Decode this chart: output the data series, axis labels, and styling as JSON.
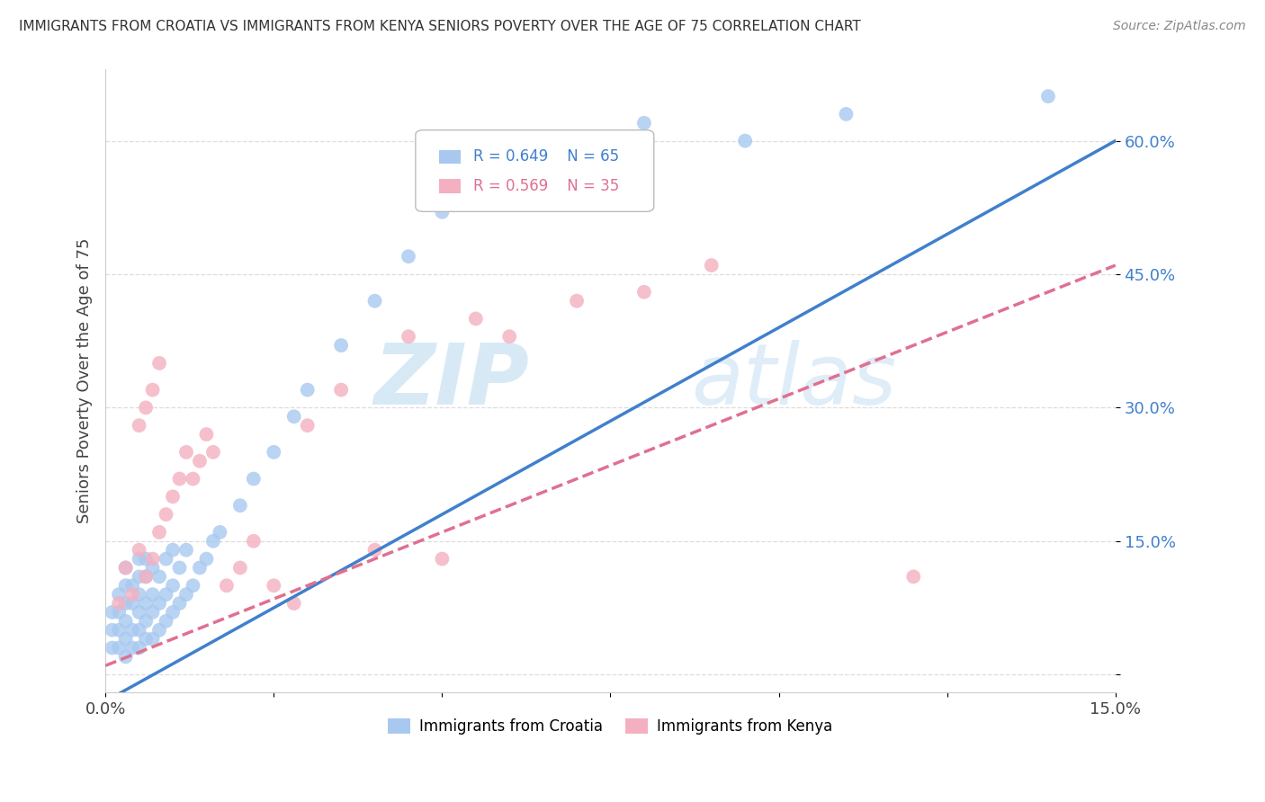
{
  "title": "IMMIGRANTS FROM CROATIA VS IMMIGRANTS FROM KENYA SENIORS POVERTY OVER THE AGE OF 75 CORRELATION CHART",
  "source": "Source: ZipAtlas.com",
  "ylabel": "Seniors Poverty Over the Age of 75",
  "xlim": [
    0.0,
    0.15
  ],
  "ylim": [
    -0.02,
    0.68
  ],
  "xticks": [
    0.0,
    0.025,
    0.05,
    0.075,
    0.1,
    0.125,
    0.15
  ],
  "xticklabels": [
    "0.0%",
    "",
    "",
    "",
    "",
    "",
    "15.0%"
  ],
  "ytick_positions": [
    0.0,
    0.15,
    0.3,
    0.45,
    0.6
  ],
  "ytick_labels": [
    "",
    "15.0%",
    "30.0%",
    "45.0%",
    "60.0%"
  ],
  "croatia_R": 0.649,
  "croatia_N": 65,
  "kenya_R": 0.569,
  "kenya_N": 35,
  "croatia_color": "#a8c8f0",
  "kenya_color": "#f4b0c0",
  "croatia_line_color": "#4080cc",
  "kenya_line_color": "#e07090",
  "watermark_zip": "ZIP",
  "watermark_atlas": "atlas",
  "croatia_line_slope": 4.2,
  "croatia_line_intercept": -0.03,
  "kenya_line_slope": 3.0,
  "kenya_line_intercept": 0.01,
  "grid_color": "#dddddd",
  "spine_color": "#cccccc",
  "title_fontsize": 11,
  "source_fontsize": 10,
  "tick_fontsize": 13,
  "ylabel_fontsize": 13,
  "scatter_croatia_x": [
    0.001,
    0.001,
    0.001,
    0.002,
    0.002,
    0.002,
    0.002,
    0.003,
    0.003,
    0.003,
    0.003,
    0.003,
    0.003,
    0.004,
    0.004,
    0.004,
    0.004,
    0.005,
    0.005,
    0.005,
    0.005,
    0.005,
    0.005,
    0.006,
    0.006,
    0.006,
    0.006,
    0.006,
    0.007,
    0.007,
    0.007,
    0.007,
    0.008,
    0.008,
    0.008,
    0.009,
    0.009,
    0.009,
    0.01,
    0.01,
    0.01,
    0.011,
    0.011,
    0.012,
    0.012,
    0.013,
    0.014,
    0.015,
    0.016,
    0.017,
    0.02,
    0.022,
    0.025,
    0.028,
    0.03,
    0.035,
    0.04,
    0.045,
    0.05,
    0.06,
    0.07,
    0.08,
    0.095,
    0.11,
    0.14
  ],
  "scatter_croatia_y": [
    0.03,
    0.05,
    0.07,
    0.03,
    0.05,
    0.07,
    0.09,
    0.02,
    0.04,
    0.06,
    0.08,
    0.1,
    0.12,
    0.03,
    0.05,
    0.08,
    0.1,
    0.03,
    0.05,
    0.07,
    0.09,
    0.11,
    0.13,
    0.04,
    0.06,
    0.08,
    0.11,
    0.13,
    0.04,
    0.07,
    0.09,
    0.12,
    0.05,
    0.08,
    0.11,
    0.06,
    0.09,
    0.13,
    0.07,
    0.1,
    0.14,
    0.08,
    0.12,
    0.09,
    0.14,
    0.1,
    0.12,
    0.13,
    0.15,
    0.16,
    0.19,
    0.22,
    0.25,
    0.29,
    0.32,
    0.37,
    0.42,
    0.47,
    0.52,
    0.57,
    0.6,
    0.62,
    0.6,
    0.63,
    0.65
  ],
  "scatter_kenya_x": [
    0.002,
    0.003,
    0.004,
    0.005,
    0.005,
    0.006,
    0.006,
    0.007,
    0.007,
    0.008,
    0.008,
    0.009,
    0.01,
    0.011,
    0.012,
    0.013,
    0.014,
    0.015,
    0.016,
    0.018,
    0.02,
    0.022,
    0.025,
    0.028,
    0.03,
    0.035,
    0.04,
    0.045,
    0.05,
    0.055,
    0.06,
    0.07,
    0.08,
    0.09,
    0.12
  ],
  "scatter_kenya_y": [
    0.08,
    0.12,
    0.09,
    0.14,
    0.28,
    0.11,
    0.3,
    0.13,
    0.32,
    0.16,
    0.35,
    0.18,
    0.2,
    0.22,
    0.25,
    0.22,
    0.24,
    0.27,
    0.25,
    0.1,
    0.12,
    0.15,
    0.1,
    0.08,
    0.28,
    0.32,
    0.14,
    0.38,
    0.13,
    0.4,
    0.38,
    0.42,
    0.43,
    0.46,
    0.11
  ]
}
